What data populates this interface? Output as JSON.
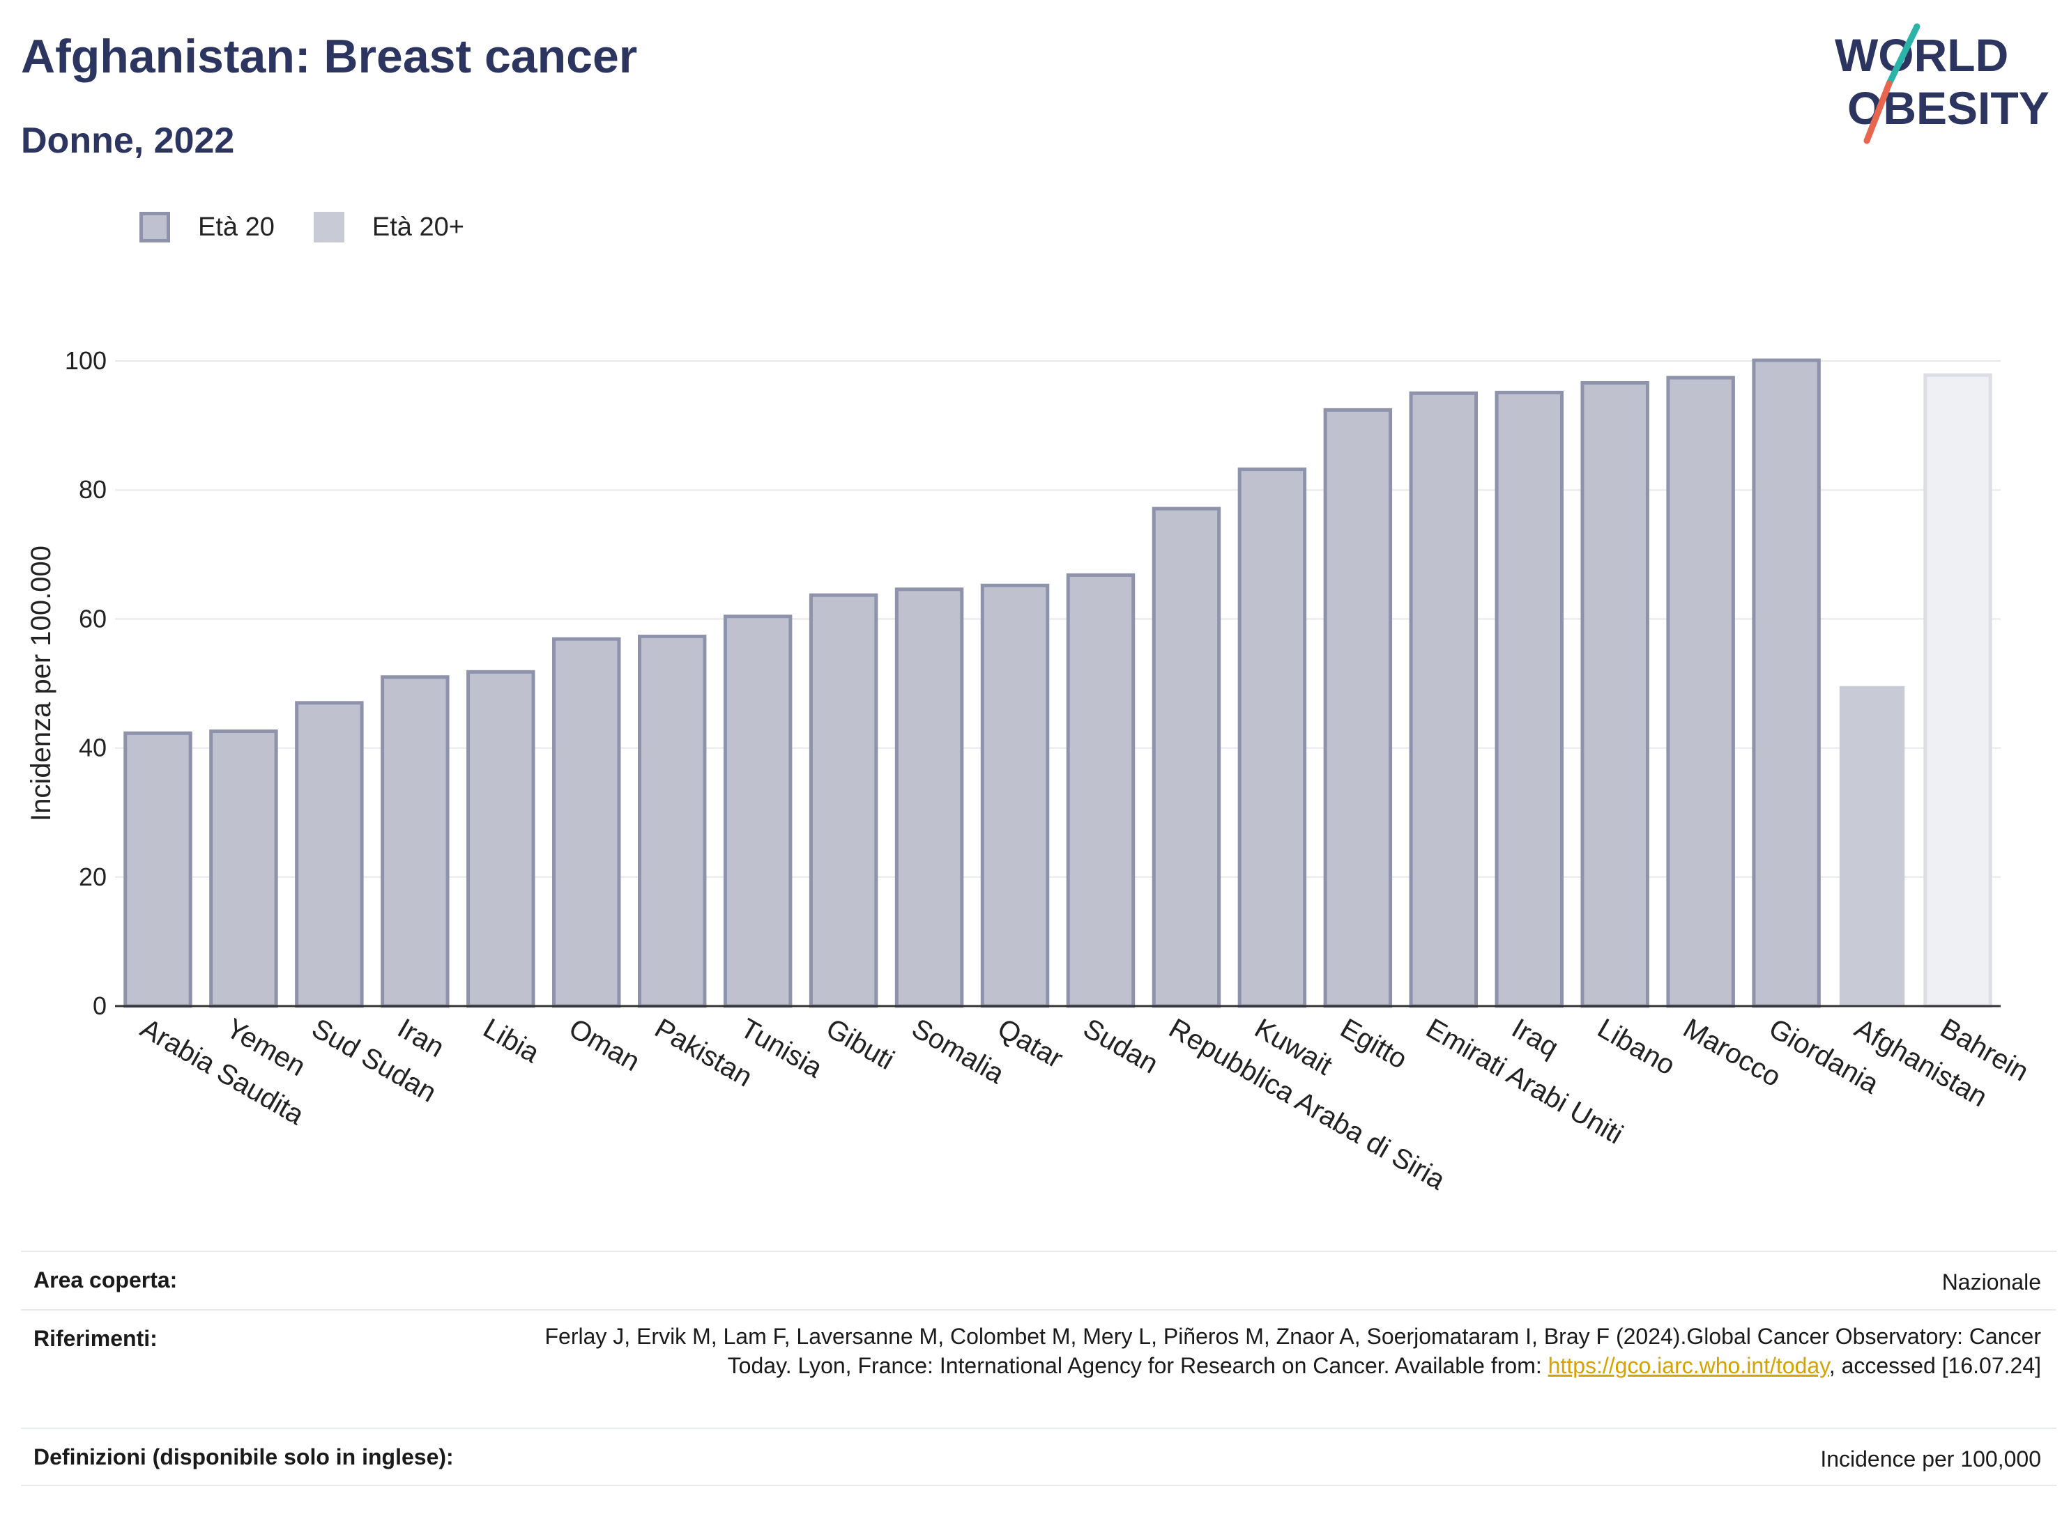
{
  "header": {
    "title": "Afghanistan: Breast cancer",
    "subtitle": "Donne, 2022"
  },
  "logo": {
    "line1": "WORLD",
    "line2": "OBESITY"
  },
  "legend": [
    {
      "label": "Età 20",
      "color": "#bfc1cf",
      "border": "#8e92ab"
    },
    {
      "label": "Età 20+",
      "color": "#c8cad6"
    }
  ],
  "chart_data": {
    "type": "bar",
    "title": "Afghanistan: Breast cancer",
    "subtitle": "Donne, 2022",
    "ylabel": "Incidenza per 100.000",
    "xlabel": "",
    "ylim": [
      0,
      100
    ],
    "yticks": [
      0,
      20,
      40,
      60,
      80,
      100
    ],
    "grid": true,
    "legend_position": "top-left",
    "categories": [
      "Arabia Saudita",
      "Yemen",
      "Sud Sudan",
      "Iran",
      "Libia",
      "Oman",
      "Pakistan",
      "Tunisia",
      "Gibuti",
      "Somalia",
      "Qatar",
      "Sudan",
      "Repubblica Araba di Siria",
      "Kuwait",
      "Egitto",
      "Emirati Arabi Uniti",
      "Iraq",
      "Libano",
      "Marocco",
      "Giordania",
      "Afghanistan",
      "Bahrein"
    ],
    "values": [
      42.3,
      42.6,
      47.0,
      51.0,
      51.8,
      56.9,
      57.3,
      60.4,
      63.7,
      64.6,
      65.2,
      66.8,
      77.1,
      83.2,
      92.4,
      95.0,
      95.1,
      96.6,
      97.4,
      100.1,
      49.6,
      97.8
    ],
    "series_style": [
      "Età 20",
      "Età 20",
      "Età 20",
      "Età 20",
      "Età 20",
      "Età 20",
      "Età 20",
      "Età 20",
      "Età 20",
      "Età 20",
      "Età 20",
      "Età 20",
      "Età 20",
      "Età 20",
      "Età 20",
      "Età 20",
      "Età 20",
      "Età 20",
      "Età 20",
      "Età 20",
      "Età 20+",
      "Età 20"
    ],
    "colors": {
      "Età 20": {
        "fill": "#bfc1cf",
        "stroke": "#8e92ab"
      },
      "Età 20+": {
        "fill": "#c8cad6",
        "stroke": "none"
      },
      "faded": {
        "fill": "#eef0f4",
        "stroke": "#dcdee6"
      }
    },
    "faded_index": 21
  },
  "info": {
    "area_label": "Area coperta:",
    "area_value": "Nazionale",
    "ref_label": "Riferimenti:",
    "ref_part1": "Ferlay J, Ervik M, Lam F, Laversanne M, Colombet M, Mery L, Piñeros M, Znaor A, Soerjomataram I, Bray F (2024).Global Cancer Observatory: Cancer Today. Lyon, France: International Agency for Research on Cancer. Available from:",
    "ref_link": "https://gco.iarc.who.int/today",
    "ref_part2": ", accessed [16.07.24]",
    "def_label": "Definizioni (disponibile solo in inglese):",
    "def_value": "Incidence per 100,000"
  }
}
